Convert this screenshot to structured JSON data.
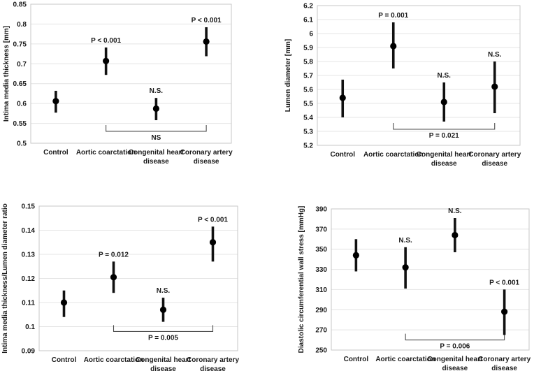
{
  "figure": {
    "background": "#ffffff",
    "description": "Four-panel forest-style plot of means with confidence intervals for four patient groups"
  },
  "colors": {
    "marker": "#000000",
    "error_bar": "#111111",
    "gridline": "#e4e4e4",
    "axis_border": "#c7c7c7",
    "bracket": "#4d4d4d",
    "text": "#1a1a1a"
  },
  "chart_data": [
    {
      "id": "intima-media-thickness",
      "type": "scatter",
      "title": "",
      "ylabel": "Intima media thickness [mm]",
      "ylim": [
        0.5,
        0.85
      ],
      "grid": true,
      "legend": "none",
      "yticks": [
        {
          "value": 0.5,
          "label": "0.5"
        },
        {
          "value": 0.55,
          "label": "0.55"
        },
        {
          "value": 0.6,
          "label": "0.6"
        },
        {
          "value": 0.65,
          "label": "0.65"
        },
        {
          "value": 0.7,
          "label": "0.7"
        },
        {
          "value": 0.75,
          "label": "0.75"
        },
        {
          "value": 0.8,
          "label": "0.8"
        },
        {
          "value": 0.85,
          "label": "0.85"
        }
      ],
      "categories": [
        [
          "Control"
        ],
        [
          "Aortic coarctation"
        ],
        [
          "Congenital heart",
          "disease"
        ],
        [
          "Coronary artery",
          "disease"
        ]
      ],
      "series": [
        {
          "name": "Control",
          "value": 0.606,
          "ci_low": 0.577,
          "ci_high": 0.632,
          "p_label": ""
        },
        {
          "name": "Aortic coarctation",
          "value": 0.707,
          "ci_low": 0.672,
          "ci_high": 0.741,
          "p_label": "P < 0.001"
        },
        {
          "name": "Congenital heart disease",
          "value": 0.587,
          "ci_low": 0.558,
          "ci_high": 0.614,
          "p_label": "N.S."
        },
        {
          "name": "Coronary artery disease",
          "value": 0.756,
          "ci_low": 0.719,
          "ci_high": 0.792,
          "p_label": "P < 0.001"
        }
      ],
      "bracket": {
        "from_index": 1,
        "to_index": 3,
        "y": 0.53,
        "label": "NS"
      }
    },
    {
      "id": "lumen-diameter",
      "type": "scatter",
      "title": "",
      "ylabel": "Lumen diameter [mm]",
      "ylim": [
        5.2,
        6.2
      ],
      "grid": true,
      "legend": "none",
      "yticks": [
        {
          "value": 5.2,
          "label": "5.2"
        },
        {
          "value": 5.3,
          "label": "5.3"
        },
        {
          "value": 5.4,
          "label": "5.4"
        },
        {
          "value": 5.5,
          "label": "5.5"
        },
        {
          "value": 5.6,
          "label": "5.6"
        },
        {
          "value": 5.7,
          "label": "5.7"
        },
        {
          "value": 5.8,
          "label": "5.8"
        },
        {
          "value": 5.9,
          "label": "5.9"
        },
        {
          "value": 6.0,
          "label": "6"
        },
        {
          "value": 6.1,
          "label": "6.1"
        },
        {
          "value": 6.2,
          "label": "6.2"
        }
      ],
      "categories": [
        [
          "Control"
        ],
        [
          "Aortic coarctation"
        ],
        [
          "Congenital heart",
          "disease"
        ],
        [
          "Coronary artery",
          "disease"
        ]
      ],
      "series": [
        {
          "name": "Control",
          "value": 5.54,
          "ci_low": 5.4,
          "ci_high": 5.67,
          "p_label": ""
        },
        {
          "name": "Aortic coarctation",
          "value": 5.91,
          "ci_low": 5.75,
          "ci_high": 6.08,
          "p_label": "P = 0.001"
        },
        {
          "name": "Congenital heart disease",
          "value": 5.51,
          "ci_low": 5.37,
          "ci_high": 5.65,
          "p_label": "N.S."
        },
        {
          "name": "Coronary artery disease",
          "value": 5.62,
          "ci_low": 5.43,
          "ci_high": 5.8,
          "p_label": "N.S."
        }
      ],
      "bracket": {
        "from_index": 1,
        "to_index": 3,
        "y": 5.315,
        "label": "P = 0.021"
      }
    },
    {
      "id": "imt-lumen-ratio",
      "type": "scatter",
      "title": "",
      "ylabel": "Intima media thickness/Lumen diameter ratio",
      "ylim": [
        0.09,
        0.15
      ],
      "grid": true,
      "legend": "none",
      "yticks": [
        {
          "value": 0.09,
          "label": "0.09"
        },
        {
          "value": 0.1,
          "label": "0.1"
        },
        {
          "value": 0.11,
          "label": "0.11"
        },
        {
          "value": 0.12,
          "label": "0.12"
        },
        {
          "value": 0.13,
          "label": "0.13"
        },
        {
          "value": 0.14,
          "label": "0.14"
        },
        {
          "value": 0.15,
          "label": "0.15"
        }
      ],
      "categories": [
        [
          "Control"
        ],
        [
          "Aortic coarctation"
        ],
        [
          "Congenital heart",
          "disease"
        ],
        [
          "Coronary artery",
          "disease"
        ]
      ],
      "series": [
        {
          "name": "Control",
          "value": 0.11,
          "ci_low": 0.104,
          "ci_high": 0.115,
          "p_label": ""
        },
        {
          "name": "Aortic coarctation",
          "value": 0.1205,
          "ci_low": 0.114,
          "ci_high": 0.127,
          "p_label": "P = 0.012"
        },
        {
          "name": "Congenital heart disease",
          "value": 0.107,
          "ci_low": 0.102,
          "ci_high": 0.112,
          "p_label": "N.S."
        },
        {
          "name": "Coronary artery disease",
          "value": 0.135,
          "ci_low": 0.127,
          "ci_high": 0.1415,
          "p_label": "P < 0.001"
        }
      ],
      "bracket": {
        "from_index": 1,
        "to_index": 3,
        "y": 0.098,
        "label": "P = 0.005"
      }
    },
    {
      "id": "diastolic-wall-stress",
      "type": "scatter",
      "title": "",
      "ylabel": "Diastolic circumferential wall stress [mmHg]",
      "ylim": [
        250,
        390
      ],
      "grid": true,
      "legend": "none",
      "yticks": [
        {
          "value": 250,
          "label": "250"
        },
        {
          "value": 270,
          "label": "270"
        },
        {
          "value": 290,
          "label": "290"
        },
        {
          "value": 310,
          "label": "310"
        },
        {
          "value": 330,
          "label": "330"
        },
        {
          "value": 350,
          "label": "350"
        },
        {
          "value": 370,
          "label": "370"
        },
        {
          "value": 390,
          "label": "390"
        }
      ],
      "categories": [
        [
          "Control"
        ],
        [
          "Aortic coarctation"
        ],
        [
          "Congenital heart",
          "disease"
        ],
        [
          "Coronary artery",
          "disease"
        ]
      ],
      "series": [
        {
          "name": "Control",
          "value": 344,
          "ci_low": 328,
          "ci_high": 360,
          "p_label": ""
        },
        {
          "name": "Aortic coarctation",
          "value": 332,
          "ci_low": 311,
          "ci_high": 352,
          "p_label": "N.S."
        },
        {
          "name": "Congenital heart disease",
          "value": 364,
          "ci_low": 347,
          "ci_high": 381,
          "p_label": "N.S."
        },
        {
          "name": "Coronary artery disease",
          "value": 288,
          "ci_low": 265,
          "ci_high": 310,
          "p_label": "P < 0.001"
        }
      ],
      "bracket": {
        "from_index": 1,
        "to_index": 3,
        "y": 260,
        "label": "P = 0.006"
      }
    }
  ]
}
